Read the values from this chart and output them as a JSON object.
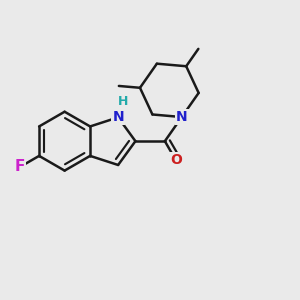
{
  "bg_color": "#eaeaea",
  "bond_color": "#1a1a1a",
  "bond_width": 1.8,
  "N_color": "#2020cc",
  "O_color": "#cc2020",
  "F_color": "#cc22cc",
  "H_color": "#22aaaa",
  "font_size": 10,
  "fig_width": 3.0,
  "fig_height": 3.0,
  "dpi": 100,
  "xlim": [
    0,
    10
  ],
  "ylim": [
    0,
    10
  ]
}
